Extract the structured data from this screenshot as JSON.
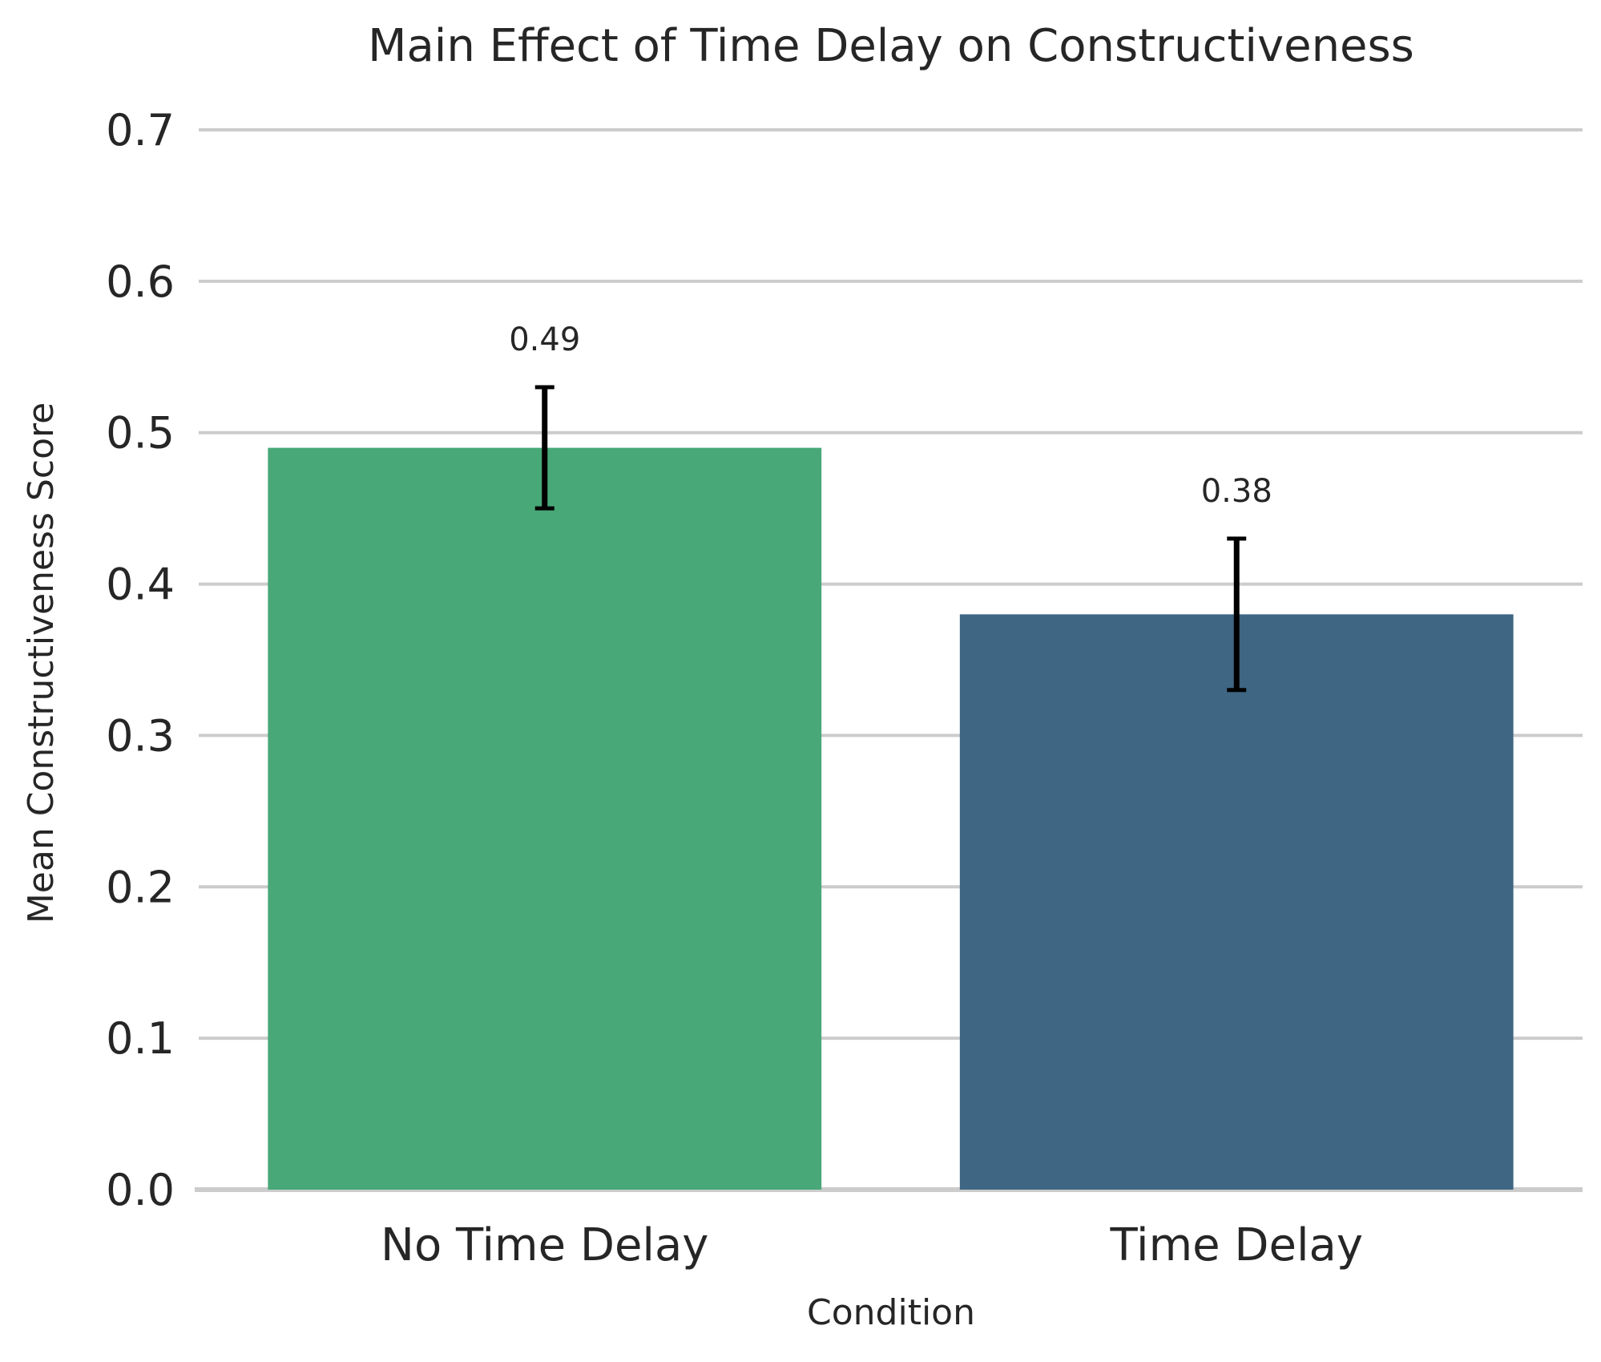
{
  "chart_data": {
    "type": "bar",
    "title": "Main Effect of Time Delay on Constructiveness",
    "xlabel": "Condition",
    "ylabel": "Mean Constructiveness Score",
    "categories": [
      "No Time Delay",
      "Time Delay"
    ],
    "values": [
      0.49,
      0.38
    ],
    "data_labels": [
      "0.49",
      "0.38"
    ],
    "error_bars": [
      {
        "low": 0.45,
        "high": 0.53
      },
      {
        "low": 0.33,
        "high": 0.43
      }
    ],
    "bar_colors": [
      "#48a878",
      "#3f6682"
    ],
    "ylim": [
      0,
      0.7
    ],
    "yticks": [
      0.0,
      0.1,
      0.2,
      0.3,
      0.4,
      0.5,
      0.6,
      0.7
    ],
    "ytick_labels": [
      "0.0",
      "0.1",
      "0.2",
      "0.3",
      "0.4",
      "0.5",
      "0.6",
      "0.7"
    ],
    "grid": "horizontal",
    "legend": "none"
  }
}
